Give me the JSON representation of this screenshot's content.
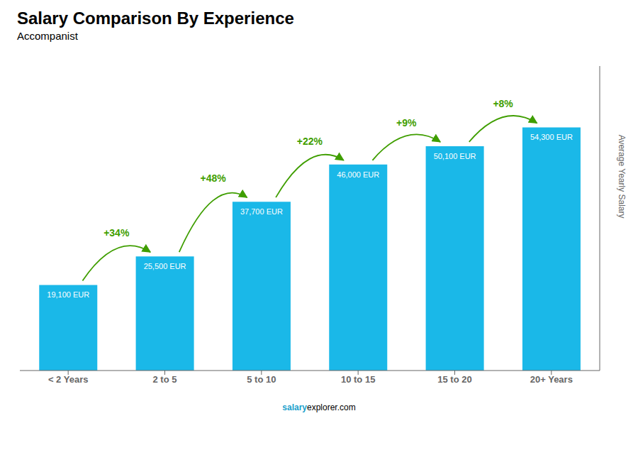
{
  "chart_data": {
    "type": "bar",
    "title": "Salary Comparison By Experience",
    "subtitle": "Accompanist",
    "categories": [
      "< 2 Years",
      "2 to 5",
      "5 to 10",
      "10 to 15",
      "15 to 20",
      "20+ Years"
    ],
    "values": [
      19100,
      25500,
      37700,
      46000,
      50100,
      54300
    ],
    "value_labels": [
      "19,100 EUR",
      "25,500 EUR",
      "37,700 EUR",
      "46,000 EUR",
      "50,100 EUR",
      "54,300 EUR"
    ],
    "data_labels": true,
    "annotations": [
      "+34%",
      "+48%",
      "+22%",
      "+9%",
      "+8%"
    ],
    "ylabel": "Average Yearly Salary",
    "footer": [
      "salary",
      "explorer.com"
    ],
    "color": "#1ab8e8",
    "ylim": [
      0,
      68000
    ],
    "grid": false,
    "tick_labels": "x"
  }
}
